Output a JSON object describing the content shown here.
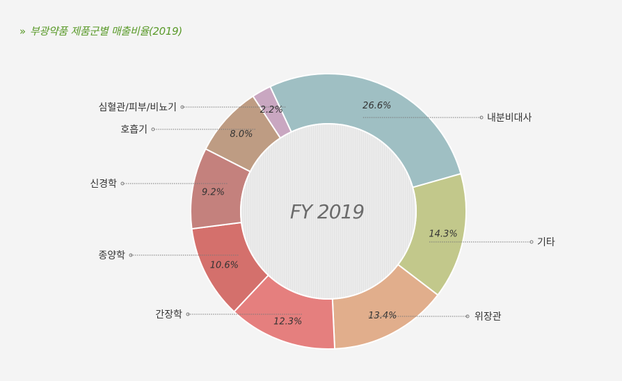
{
  "header": {
    "marker": "»",
    "title": "부광약품 제품군별 매출비율(2019)"
  },
  "chart_data": {
    "type": "pie",
    "variant": "donut",
    "center_label": "FY 2019",
    "unit": "%",
    "slices": [
      {
        "label": "내분비대사",
        "value": 26.6,
        "value_label": "26.6%",
        "color": "#9fbfc3"
      },
      {
        "label": "기타",
        "value": 14.3,
        "value_label": "14.3%",
        "color": "#c2c88b"
      },
      {
        "label": "위장관",
        "value": 13.4,
        "value_label": "13.4%",
        "color": "#e1ae8c"
      },
      {
        "label": "간장학",
        "value": 12.3,
        "value_label": "12.3%",
        "color": "#e57f7e"
      },
      {
        "label": "종양학",
        "value": 10.6,
        "value_label": "10.6%",
        "color": "#d4706c"
      },
      {
        "label": "신경학",
        "value": 9.2,
        "value_label": "9.2%",
        "color": "#c4817d"
      },
      {
        "label": "호흡기",
        "value": 8.0,
        "value_label": "8.0%",
        "color": "#be9c83"
      },
      {
        "label": "심혈관/피부/비뇨기",
        "value": 2.2,
        "value_label": "2.2%",
        "color": "#c9a7c1"
      }
    ]
  },
  "colors": {
    "background": "#f4f4f4",
    "title": "#5a9a2a",
    "label_text": "#333333",
    "leader_line": "#777777",
    "center_fill": "#e9e9e9",
    "center_text": "#6b6b6b"
  }
}
